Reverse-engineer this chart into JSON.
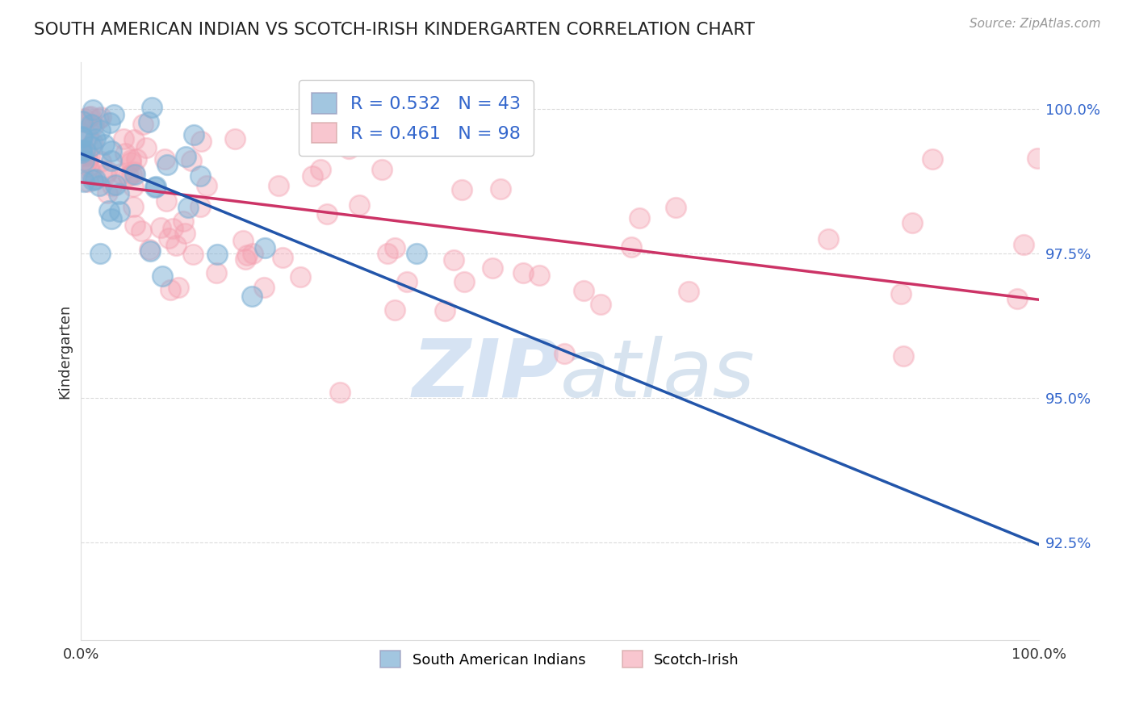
{
  "title": "SOUTH AMERICAN INDIAN VS SCOTCH-IRISH KINDERGARTEN CORRELATION CHART",
  "source": "Source: ZipAtlas.com",
  "ylabel": "Kindergarten",
  "y_ticks": [
    0.925,
    0.95,
    0.975,
    1.0
  ],
  "y_tick_labels": [
    "92.5%",
    "95.0%",
    "97.5%",
    "100.0%"
  ],
  "x_range": [
    0.0,
    1.0
  ],
  "y_range": [
    0.908,
    1.008
  ],
  "blue_color": "#7BAFD4",
  "pink_color": "#F4A0B0",
  "blue_line_color": "#2255AA",
  "pink_line_color": "#CC3366",
  "blue_R": 0.532,
  "blue_N": 43,
  "pink_R": 0.461,
  "pink_N": 98,
  "legend_label_blue": "South American Indians",
  "legend_label_pink": "Scotch-Irish",
  "watermark_zip": "ZIP",
  "watermark_atlas": "atlas",
  "background_color": "#ffffff",
  "grid_color": "#cccccc",
  "title_color": "#222222",
  "tick_label_color": "#3366CC",
  "legend_text_color": "#3366CC",
  "source_color": "#999999"
}
